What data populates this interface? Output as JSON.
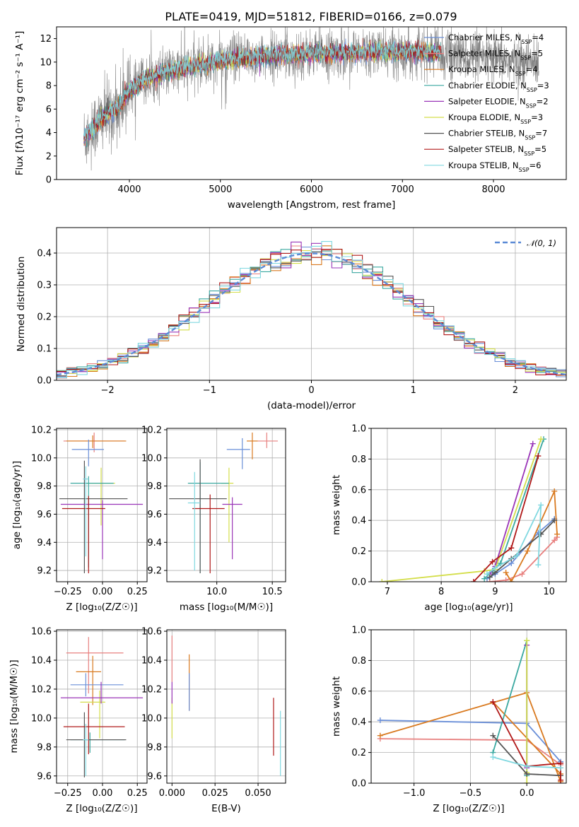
{
  "title": "PLATE=0419, MJD=51812, FIBERID=0166, z=0.079",
  "colors": {
    "Chabrier MILES": "#6a8fd8",
    "Salpeter MILES": "#e8807f",
    "Kroupa MILES": "#d97a20",
    "Chabrier ELODIE": "#3aa8a0",
    "Salpeter ELODIE": "#9a35b8",
    "Kroupa ELODIE": "#d4de4a",
    "Chabrier STELIB": "#555555",
    "Salpeter STELIB": "#b01818",
    "Kroupa STELIB": "#80d8e0"
  },
  "chart_data": [
    {
      "type": "line",
      "id": "spectrum",
      "title": "PLATE=0419, MJD=51812, FIBERID=0166, z=0.079",
      "xlabel": "wavelength [Angstrom, rest frame]",
      "ylabel": "Flux [fλ10⁻¹⁷ erg cm⁻² s⁻¹ A⁻¹]",
      "xlim": [
        3200,
        8800
      ],
      "ylim": [
        0,
        13
      ],
      "xticks": [
        4000,
        5000,
        6000,
        7000,
        8000
      ],
      "yticks": [
        0,
        2,
        4,
        6,
        8,
        10,
        12
      ],
      "grid": false,
      "legend_position": "right",
      "legend": [
        {
          "name": "Chabrier MILES",
          "nssp": "4"
        },
        {
          "name": "Salpeter MILES",
          "nssp": "5"
        },
        {
          "name": "Kroupa MILES",
          "nssp": "4"
        },
        {
          "name": "Chabrier ELODIE",
          "nssp": "3"
        },
        {
          "name": "Salpeter ELODIE",
          "nssp": "2"
        },
        {
          "name": "Kroupa ELODIE",
          "nssp": "3"
        },
        {
          "name": "Chabrier STELIB",
          "nssp": "7"
        },
        {
          "name": "Salpeter STELIB",
          "nssp": "5"
        },
        {
          "name": "Kroupa STELIB",
          "nssp": "6"
        }
      ],
      "continuum": {
        "x": [
          3500,
          3700,
          3900,
          4000,
          4200,
          4500,
          5000,
          5500,
          6000,
          6500,
          7000,
          7400,
          8000,
          8500
        ],
        "y": [
          3.5,
          5.2,
          6.3,
          7.6,
          8.6,
          9.3,
          10.1,
          10.5,
          10.7,
          10.8,
          10.9,
          10.8,
          10.2,
          9.9
        ]
      },
      "data_range": [
        3500,
        8500
      ],
      "model_range": [
        3500,
        7420
      ]
    },
    {
      "type": "step",
      "id": "residuals",
      "xlabel": "(data-model)/error",
      "ylabel": "Normed distribution",
      "xlim": [
        -2.5,
        2.5
      ],
      "ylim": [
        0,
        0.48
      ],
      "xticks": [
        -2,
        -1,
        0,
        1,
        2
      ],
      "yticks": [
        0.0,
        0.1,
        0.2,
        0.3,
        0.4
      ],
      "grid": true,
      "legend_position": "top-right",
      "legend": [
        {
          "name": "𝒩(0, 1)"
        }
      ],
      "bin_width": 0.1
    },
    {
      "type": "scatter",
      "id": "age-vs-metallicity",
      "xlabel": "Z [log₁₀(Z/Z☉)]",
      "ylabel": "age  [log₁₀(age/yr)]",
      "xlim": [
        -0.33,
        0.32
      ],
      "ylim": [
        9.12,
        10.21
      ],
      "xticks": [
        -0.25,
        0.0,
        0.25
      ],
      "yticks": [
        9.2,
        9.4,
        9.6,
        9.8,
        10.0,
        10.2
      ],
      "grid": true,
      "points": [
        {
          "s": "Salpeter MILES",
          "x": -0.06,
          "y": 10.12,
          "xe": [
            0.22,
            0.22
          ],
          "ye": [
            0.08,
            0.06
          ]
        },
        {
          "s": "Kroupa MILES",
          "x": -0.07,
          "y": 10.12,
          "xe": [
            0.19,
            0.24
          ],
          "ye": [
            0.05,
            0.04
          ]
        },
        {
          "s": "Chabrier MILES",
          "x": -0.1,
          "y": 10.06,
          "xe": [
            0.12,
            0.11
          ],
          "ye": [
            0.12,
            0.07
          ]
        },
        {
          "s": "Kroupa ELODIE",
          "x": -0.01,
          "y": 9.82,
          "xe": [
            0.11,
            0.1
          ],
          "ye": [
            0.3,
            0.11
          ]
        },
        {
          "s": "Chabrier ELODIE",
          "x": -0.1,
          "y": 9.82,
          "xe": [
            0.13,
            0.18
          ],
          "ye": [
            0.6,
            0.05
          ]
        },
        {
          "s": "Chabrier STELIB",
          "x": -0.13,
          "y": 9.71,
          "xe": [
            0.18,
            0.31
          ],
          "ye": [
            0.53,
            0.27
          ]
        },
        {
          "s": "Salpeter ELODIE",
          "x": 0.0,
          "y": 9.67,
          "xe": [
            0.3,
            0.29
          ],
          "ye": [
            0.39,
            0.03
          ]
        },
        {
          "s": "Salpeter STELIB",
          "x": -0.1,
          "y": 9.64,
          "xe": [
            0.19,
            0.12
          ],
          "ye": [
            0.46,
            0.09
          ]
        },
        {
          "s": "Kroupa STELIB",
          "x": -0.12,
          "y": 9.85,
          "xe": [
            0.02,
            0.02
          ],
          "ye": [
            0.55,
            0.09
          ]
        }
      ]
    },
    {
      "type": "scatter",
      "id": "age-vs-mass",
      "xlabel": "mass [log₁₀(M/M☉)]",
      "ylabel": "",
      "xlim": [
        9.55,
        10.62
      ],
      "ylim": [
        9.12,
        10.21
      ],
      "xticks": [
        10.0,
        10.5
      ],
      "yticks": [
        9.2,
        9.4,
        9.6,
        9.8,
        10.0,
        10.2
      ],
      "grid": true,
      "points": [
        {
          "s": "Salpeter MILES",
          "x": 10.45,
          "y": 10.12,
          "xe": [
            0.08,
            0.1
          ],
          "ye": [
            0.05,
            0.06
          ]
        },
        {
          "s": "Kroupa MILES",
          "x": 10.32,
          "y": 10.12,
          "xe": [
            0.05,
            0.05
          ],
          "ye": [
            0.13,
            0.06
          ]
        },
        {
          "s": "Chabrier MILES",
          "x": 10.23,
          "y": 10.06,
          "xe": [
            0.14,
            0.07
          ],
          "ye": [
            0.14,
            0.08
          ]
        },
        {
          "s": "Kroupa ELODIE",
          "x": 10.11,
          "y": 9.82,
          "xe": [
            0.07,
            0.04
          ],
          "ye": [
            0.42,
            0.11
          ]
        },
        {
          "s": "Chabrier ELODIE",
          "x": 9.85,
          "y": 9.82,
          "xe": [
            0.11,
            0.26
          ],
          "ye": [
            0.64,
            0.15
          ]
        },
        {
          "s": "Chabrier STELIB",
          "x": 9.85,
          "y": 9.71,
          "xe": [
            0.28,
            0.24
          ],
          "ye": [
            0.53,
            0.28
          ]
        },
        {
          "s": "Salpeter ELODIE",
          "x": 10.14,
          "y": 9.67,
          "xe": [
            0.09,
            0.09
          ],
          "ye": [
            0.39,
            0.05
          ]
        },
        {
          "s": "Salpeter STELIB",
          "x": 9.94,
          "y": 9.64,
          "xe": [
            0.16,
            0.13
          ],
          "ye": [
            0.46,
            0.1
          ]
        },
        {
          "s": "Kroupa STELIB",
          "x": 9.8,
          "y": 9.68,
          "xe": [
            0.06,
            0.05
          ],
          "ye": [
            0.48,
            0.22
          ]
        }
      ]
    },
    {
      "type": "line",
      "id": "mass-weight-vs-age",
      "xlabel": "age  [log₁₀(age/yr)]",
      "ylabel": "mass weight",
      "xlim": [
        6.7,
        10.32
      ],
      "ylim": [
        0,
        1.0
      ],
      "xticks": [
        7,
        8,
        9,
        10
      ],
      "yticks": [
        0.0,
        0.2,
        0.4,
        0.6,
        0.8,
        1.0
      ],
      "grid": true,
      "series": [
        {
          "name": "Chabrier MILES",
          "x": [
            8.85,
            9.0,
            9.3,
            9.8,
            10.1
          ],
          "y": [
            0.02,
            0.05,
            0.12,
            0.32,
            0.41
          ]
        },
        {
          "name": "Salpeter MILES",
          "x": [
            8.9,
            9.2,
            9.5,
            10.1,
            10.15
          ],
          "y": [
            0.0,
            0.01,
            0.05,
            0.27,
            0.29
          ]
        },
        {
          "name": "Kroupa MILES",
          "x": [
            9.2,
            9.3,
            9.6,
            10.1,
            10.15
          ],
          "y": [
            0.06,
            0.0,
            0.2,
            0.59,
            0.31
          ]
        },
        {
          "name": "Chabrier ELODIE",
          "x": [
            8.8,
            8.95,
            9.1,
            9.9
          ],
          "y": [
            0.02,
            0.07,
            0.12,
            0.93
          ]
        },
        {
          "name": "Salpeter ELODIE",
          "x": [
            8.9,
            9.0,
            9.7
          ],
          "y": [
            0.05,
            0.1,
            0.9
          ]
        },
        {
          "name": "Kroupa ELODIE",
          "x": [
            6.9,
            8.8,
            9.0,
            9.85
          ],
          "y": [
            0.0,
            0.07,
            0.08,
            0.93
          ]
        },
        {
          "name": "Chabrier STELIB",
          "x": [
            8.9,
            9.0,
            9.3,
            9.85,
            10.1
          ],
          "y": [
            0.03,
            0.06,
            0.15,
            0.31,
            0.4
          ]
        },
        {
          "name": "Salpeter STELIB",
          "x": [
            8.6,
            8.95,
            9.3,
            9.8
          ],
          "y": [
            0.0,
            0.13,
            0.22,
            0.82
          ]
        },
        {
          "name": "Kroupa STELIB",
          "x": [
            8.85,
            9.0,
            9.4,
            9.85,
            9.8
          ],
          "y": [
            0.05,
            0.09,
            0.17,
            0.5,
            0.11
          ]
        }
      ]
    },
    {
      "type": "scatter",
      "id": "mass-vs-metallicity",
      "xlabel": "Z [log₁₀(Z/Z☉)]",
      "ylabel": "mass [log₁₀(M/M☉)]",
      "xlim": [
        -0.33,
        0.32
      ],
      "ylim": [
        9.55,
        10.61
      ],
      "xticks": [
        -0.25,
        0.0,
        0.25
      ],
      "yticks": [
        9.6,
        9.8,
        10.0,
        10.2,
        10.4,
        10.6
      ],
      "grid": true,
      "points": [
        {
          "s": "Salpeter MILES",
          "x": -0.1,
          "y": 10.45,
          "xe": [
            0.16,
            0.25
          ],
          "ye": [
            0.28,
            0.11
          ]
        },
        {
          "s": "Kroupa MILES",
          "x": -0.07,
          "y": 10.32,
          "xe": [
            0.12,
            0.06
          ],
          "ye": [
            0.23,
            0.11
          ]
        },
        {
          "s": "Chabrier MILES",
          "x": -0.12,
          "y": 10.23,
          "xe": [
            0.11,
            0.27
          ],
          "ye": [
            0.08,
            0.08
          ]
        },
        {
          "s": "Kroupa ELODIE",
          "x": -0.02,
          "y": 10.11,
          "xe": [
            0.14,
            0.04
          ],
          "ye": [
            0.25,
            0.08
          ]
        },
        {
          "s": "Chabrier ELODIE",
          "x": -0.09,
          "y": 9.85,
          "xe": [
            0.14,
            0.25
          ],
          "ye": [
            0.09,
            0.05
          ]
        },
        {
          "s": "Chabrier STELIB",
          "x": -0.13,
          "y": 9.85,
          "xe": [
            0.13,
            0.3
          ],
          "ye": [
            0.26,
            0.19
          ]
        },
        {
          "s": "Salpeter ELODIE",
          "x": -0.01,
          "y": 10.14,
          "xe": [
            0.29,
            0.3
          ],
          "ye": [
            0.04,
            0.11
          ]
        },
        {
          "s": "Salpeter STELIB",
          "x": -0.1,
          "y": 9.94,
          "xe": [
            0.18,
            0.26
          ],
          "ye": [
            0.19,
            0.16
          ]
        },
        {
          "s": "Kroupa STELIB",
          "x": -0.12,
          "y": 9.85,
          "xe": [
            0.02,
            0.02
          ],
          "ye": [
            0.25,
            0.11
          ]
        }
      ]
    },
    {
      "type": "scatter",
      "id": "mass-vs-extinction",
      "xlabel": "E(B-V)",
      "ylabel": "",
      "xlim": [
        -0.003,
        0.066
      ],
      "ylim": [
        9.55,
        10.61
      ],
      "xticks": [
        0.0,
        0.025,
        0.05
      ],
      "yticks": [
        9.6,
        9.8,
        10.0,
        10.2,
        10.4,
        10.6
      ],
      "grid": true,
      "points": [
        {
          "s": "Salpeter MILES",
          "x": 0.0,
          "y": 10.45,
          "xe": [
            0,
            0
          ],
          "ye": [
            0.2,
            0.12
          ]
        },
        {
          "s": "Kroupa MILES",
          "x": 0.01,
          "y": 10.32,
          "xe": [
            0,
            0
          ],
          "ye": [
            0.27,
            0.12
          ]
        },
        {
          "s": "Chabrier MILES",
          "x": 0.01,
          "y": 10.23,
          "xe": [
            0,
            0
          ],
          "ye": [
            0.18,
            0.08
          ]
        },
        {
          "s": "Kroupa ELODIE",
          "x": 0.0,
          "y": 10.11,
          "xe": [
            0,
            0
          ],
          "ye": [
            0.25,
            0.03
          ]
        },
        {
          "s": "Salpeter ELODIE",
          "x": 0.0,
          "y": 10.14,
          "xe": [
            0,
            0
          ],
          "ye": [
            0.04,
            0.11
          ]
        },
        {
          "s": "Salpeter STELIB",
          "x": 0.059,
          "y": 9.94,
          "xe": [
            0,
            0
          ],
          "ye": [
            0.2,
            0.2
          ]
        },
        {
          "s": "Kroupa STELIB",
          "x": 0.063,
          "y": 9.85,
          "xe": [
            0,
            0
          ],
          "ye": [
            0.25,
            0.2
          ]
        }
      ]
    },
    {
      "type": "line",
      "id": "mass-weight-vs-metallicity",
      "xlabel": "Z [log₁₀(Z/Z☉)]",
      "ylabel": "mass weight",
      "xlim": [
        -1.38,
        0.35
      ],
      "ylim": [
        0,
        1.0
      ],
      "xticks": [
        -1.0,
        -0.5,
        0.0
      ],
      "yticks": [
        0.0,
        0.2,
        0.4,
        0.6,
        0.8,
        1.0
      ],
      "grid": true,
      "series": [
        {
          "name": "Chabrier MILES",
          "x": [
            -1.3,
            0.0,
            0.3
          ],
          "y": [
            0.41,
            0.39,
            0.14
          ]
        },
        {
          "name": "Salpeter MILES",
          "x": [
            -1.3,
            0.0,
            0.3
          ],
          "y": [
            0.29,
            0.28,
            0.12
          ]
        },
        {
          "name": "Kroupa MILES",
          "x": [
            -1.3,
            0.0,
            0.3,
            0.3,
            -0.3
          ],
          "y": [
            0.31,
            0.59,
            0.01,
            0.06,
            0.53
          ]
        },
        {
          "name": "Chabrier ELODIE",
          "x": [
            -0.3,
            0.0,
            0.0
          ],
          "y": [
            0.2,
            0.93,
            0.05
          ]
        },
        {
          "name": "Salpeter ELODIE",
          "x": [
            0.0,
            0.0
          ],
          "y": [
            0.9,
            0.1
          ]
        },
        {
          "name": "Kroupa ELODIE",
          "x": [
            0.0,
            0.0,
            0.0
          ],
          "y": [
            0.93,
            0.07,
            0.0
          ]
        },
        {
          "name": "Chabrier STELIB",
          "x": [
            -0.3,
            0.0,
            0.3
          ],
          "y": [
            0.31,
            0.06,
            0.05
          ]
        },
        {
          "name": "Salpeter STELIB",
          "x": [
            -0.3,
            0.0,
            0.3,
            0.3
          ],
          "y": [
            0.53,
            0.11,
            0.13,
            0.02
          ]
        },
        {
          "name": "Kroupa STELIB",
          "x": [
            -0.3,
            0.0,
            0.3
          ],
          "y": [
            0.17,
            0.11,
            0.1
          ]
        }
      ]
    }
  ]
}
